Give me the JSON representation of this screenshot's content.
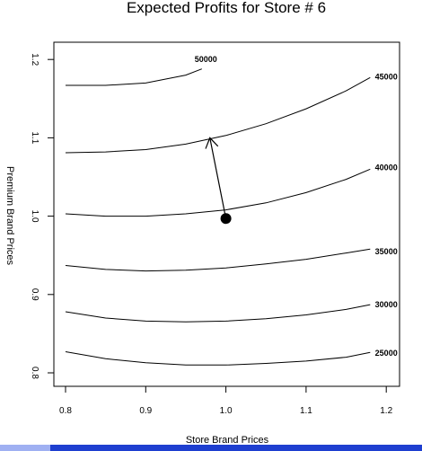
{
  "chart_data": {
    "type": "contour",
    "title": "Expected Profits for Store # 6",
    "xlabel": "Store Brand Prices",
    "ylabel": "Premium Brand Prices",
    "xlim": [
      0.78,
      1.22
    ],
    "ylim": [
      0.78,
      1.22
    ],
    "x_ticks": [
      0.8,
      0.9,
      1.0,
      1.1,
      1.2
    ],
    "x_tick_labels": [
      "0.8",
      "0.9",
      "1.0",
      "1.1",
      "1.2"
    ],
    "y_ticks": [
      0.8,
      0.9,
      1.0,
      1.1,
      1.2
    ],
    "y_tick_labels": [
      "0.8",
      "0.9",
      "1.0",
      "1.1",
      "1.2"
    ],
    "contours": [
      {
        "label": "25000",
        "label_at": [
          1.2,
          0.825
        ],
        "points": [
          [
            0.8,
            0.827
          ],
          [
            0.85,
            0.818
          ],
          [
            0.9,
            0.813
          ],
          [
            0.95,
            0.81
          ],
          [
            1.0,
            0.81
          ],
          [
            1.05,
            0.812
          ],
          [
            1.1,
            0.815
          ],
          [
            1.15,
            0.82
          ],
          [
            1.18,
            0.826
          ]
        ]
      },
      {
        "label": "30000",
        "label_at": [
          1.2,
          0.887
        ],
        "points": [
          [
            0.8,
            0.878
          ],
          [
            0.85,
            0.87
          ],
          [
            0.9,
            0.866
          ],
          [
            0.95,
            0.865
          ],
          [
            1.0,
            0.866
          ],
          [
            1.05,
            0.869
          ],
          [
            1.1,
            0.874
          ],
          [
            1.15,
            0.881
          ],
          [
            1.18,
            0.887
          ]
        ]
      },
      {
        "label": "35000",
        "label_at": [
          1.2,
          0.955
        ],
        "points": [
          [
            0.8,
            0.937
          ],
          [
            0.85,
            0.932
          ],
          [
            0.9,
            0.93
          ],
          [
            0.95,
            0.931
          ],
          [
            1.0,
            0.934
          ],
          [
            1.05,
            0.939
          ],
          [
            1.1,
            0.945
          ],
          [
            1.15,
            0.953
          ],
          [
            1.18,
            0.958
          ]
        ]
      },
      {
        "label": "40000",
        "label_at": [
          1.2,
          1.062
        ],
        "points": [
          [
            0.8,
            1.003
          ],
          [
            0.85,
            1.0
          ],
          [
            0.9,
            1.0
          ],
          [
            0.95,
            1.003
          ],
          [
            1.0,
            1.008
          ],
          [
            1.05,
            1.017
          ],
          [
            1.1,
            1.03
          ],
          [
            1.15,
            1.047
          ],
          [
            1.18,
            1.06
          ]
        ]
      },
      {
        "label": "45000",
        "label_at": [
          1.2,
          1.178
        ],
        "points": [
          [
            0.8,
            1.081
          ],
          [
            0.85,
            1.082
          ],
          [
            0.9,
            1.085
          ],
          [
            0.95,
            1.092
          ],
          [
            1.0,
            1.103
          ],
          [
            1.05,
            1.118
          ],
          [
            1.1,
            1.137
          ],
          [
            1.15,
            1.16
          ],
          [
            1.18,
            1.177
          ]
        ]
      },
      {
        "label": "50000",
        "label_at": [
          0.975,
          1.2
        ],
        "points": [
          [
            0.8,
            1.167
          ],
          [
            0.85,
            1.167
          ],
          [
            0.9,
            1.17
          ],
          [
            0.95,
            1.18
          ],
          [
            0.97,
            1.188
          ]
        ]
      }
    ],
    "point": {
      "x": 1.0,
      "y": 0.997
    },
    "arrow": {
      "from": [
        1.0,
        0.997
      ],
      "to": [
        0.98,
        1.1
      ]
    }
  }
}
